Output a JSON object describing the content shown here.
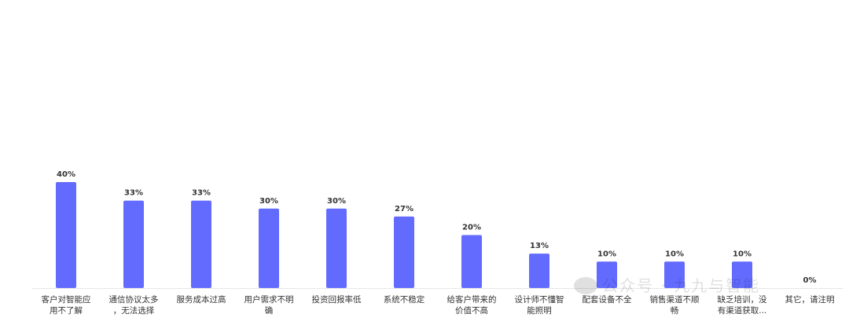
{
  "chart_data": {
    "type": "bar",
    "categories": [
      [
        "客户对智能应",
        "用不了解"
      ],
      [
        "通信协议太多",
        "，无法选择"
      ],
      [
        "服务成本过高"
      ],
      [
        "用户需求不明",
        "确"
      ],
      [
        "投资回报率低"
      ],
      [
        "系统不稳定"
      ],
      [
        "给客户带来的",
        "价值不高"
      ],
      [
        "设计师不懂智",
        "能照明"
      ],
      [
        "配套设备不全"
      ],
      [
        "销售渠道不顺",
        "畅"
      ],
      [
        "缺乏培训，没",
        "有渠道获取..."
      ],
      [
        "其它，请注明"
      ]
    ],
    "values": [
      40,
      33,
      33,
      30,
      30,
      27,
      20,
      13,
      10,
      10,
      10,
      0
    ],
    "value_labels": [
      "40%",
      "33%",
      "33%",
      "30%",
      "30%",
      "27%",
      "20%",
      "13%",
      "10%",
      "10%",
      "10%",
      "0%"
    ],
    "unit": "%",
    "ylim": [
      0,
      40
    ],
    "grid": false,
    "bar_color": "#636BFF",
    "axis_color": "#e6e6e6"
  },
  "watermark": {
    "text": "公众号 · 九九与智能"
  }
}
